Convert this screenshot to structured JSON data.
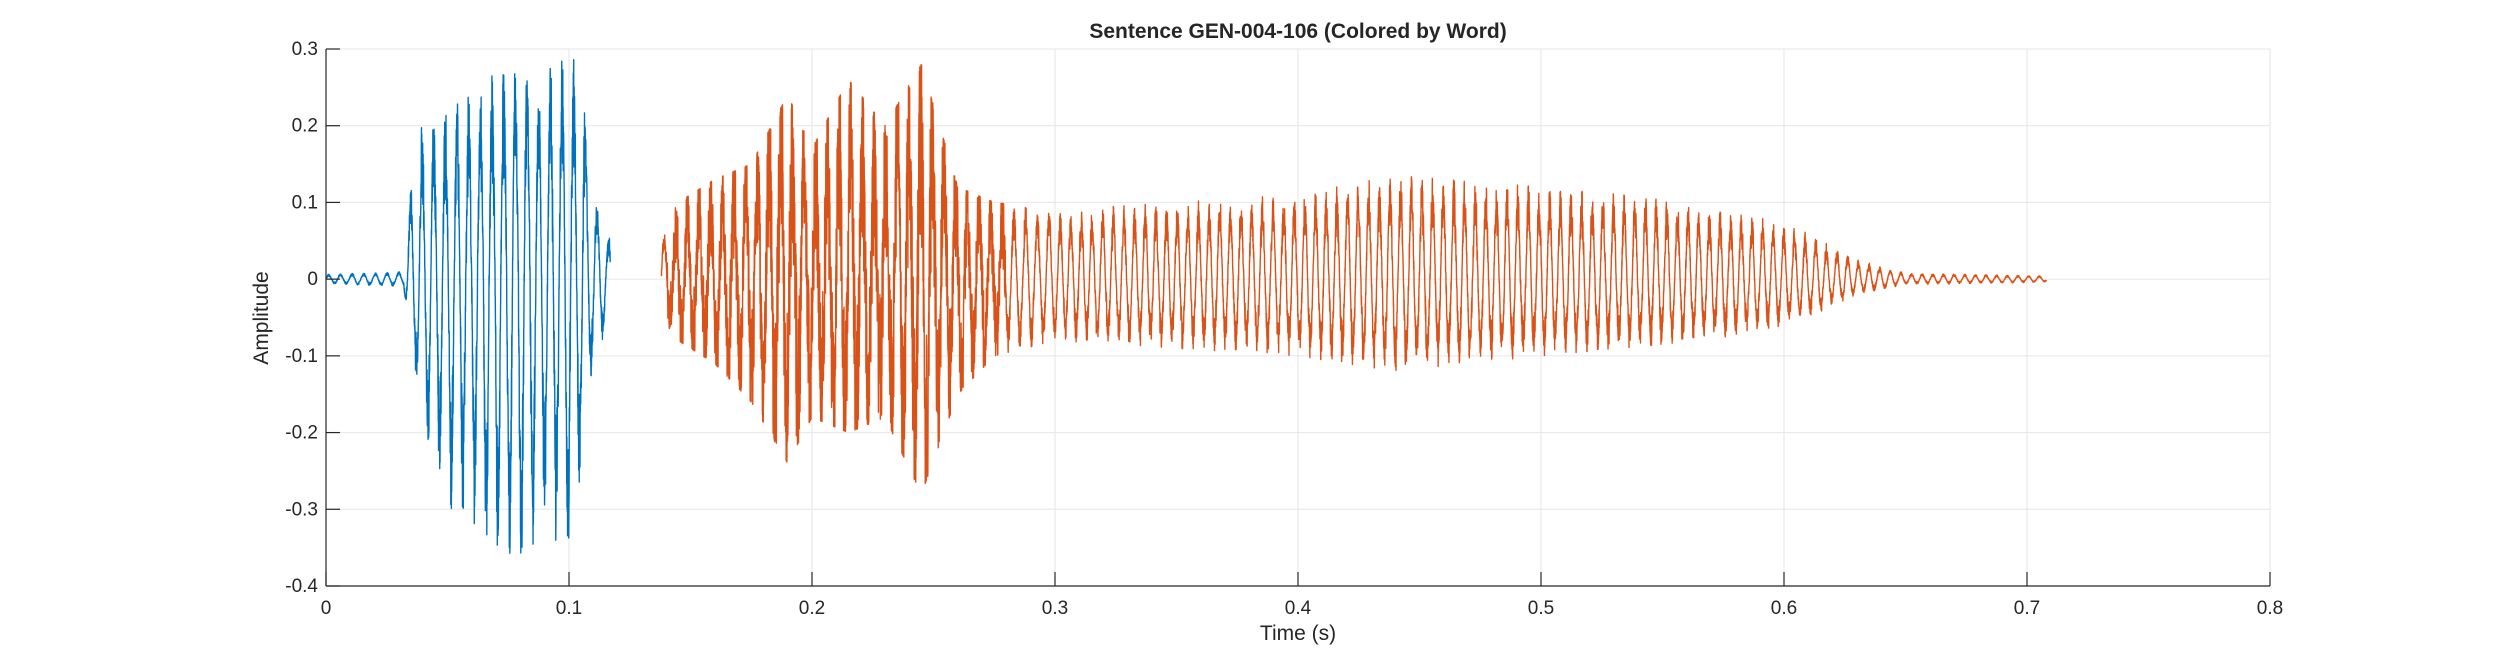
{
  "chart_data": {
    "type": "line",
    "title": "Sentence GEN-004-106 (Colored by Word)",
    "xlabel": "Time (s)",
    "ylabel": "Amplitude",
    "xlim": [
      0,
      0.8
    ],
    "ylim": [
      -0.4,
      0.3
    ],
    "xticks": [
      0,
      0.1,
      0.2,
      0.3,
      0.4,
      0.5,
      0.6,
      0.7,
      0.8
    ],
    "xtick_labels": [
      "0",
      "0.1",
      "0.2",
      "0.3",
      "0.4",
      "0.5",
      "0.6",
      "0.7",
      "0.8"
    ],
    "yticks": [
      -0.4,
      -0.3,
      -0.2,
      -0.1,
      0,
      0.1,
      0.2,
      0.3
    ],
    "ytick_labels": [
      "-0.4",
      "-0.3",
      "-0.2",
      "-0.1",
      "0",
      "0.1",
      "0.2",
      "0.3"
    ],
    "grid": true,
    "series": [
      {
        "color": "#0072BD",
        "t_start": 0,
        "t_end": 0.117,
        "envelope": [
          [
            0,
            0.006,
            -0.006
          ],
          [
            0.032,
            0.01,
            -0.01
          ],
          [
            0.035,
            0.13,
            -0.1
          ],
          [
            0.04,
            0.21,
            -0.2
          ],
          [
            0.05,
            0.22,
            -0.3
          ],
          [
            0.06,
            0.24,
            -0.32
          ],
          [
            0.07,
            0.27,
            -0.37
          ],
          [
            0.08,
            0.29,
            -0.39
          ],
          [
            0.09,
            0.27,
            -0.33
          ],
          [
            0.1,
            0.29,
            -0.36
          ],
          [
            0.105,
            0.28,
            -0.25
          ],
          [
            0.11,
            0.12,
            -0.1
          ],
          [
            0.117,
            0.05,
            -0.06
          ]
        ]
      },
      {
        "color": "#D95319",
        "t_start": 0.138,
        "t_end": 0.708,
        "envelope": [
          [
            0.138,
            0.06,
            -0.05
          ],
          [
            0.145,
            0.1,
            -0.08
          ],
          [
            0.16,
            0.13,
            -0.11
          ],
          [
            0.175,
            0.15,
            -0.16
          ],
          [
            0.19,
            0.24,
            -0.24
          ],
          [
            0.2,
            0.17,
            -0.18
          ],
          [
            0.215,
            0.26,
            -0.2
          ],
          [
            0.23,
            0.2,
            -0.18
          ],
          [
            0.245,
            0.28,
            -0.28
          ],
          [
            0.26,
            0.12,
            -0.15
          ],
          [
            0.275,
            0.1,
            -0.1
          ],
          [
            0.3,
            0.09,
            -0.08
          ],
          [
            0.35,
            0.1,
            -0.09
          ],
          [
            0.4,
            0.11,
            -0.1
          ],
          [
            0.44,
            0.135,
            -0.12
          ],
          [
            0.5,
            0.12,
            -0.1
          ],
          [
            0.55,
            0.105,
            -0.085
          ],
          [
            0.59,
            0.08,
            -0.07
          ],
          [
            0.61,
            0.06,
            -0.05
          ],
          [
            0.63,
            0.025,
            -0.02
          ],
          [
            0.65,
            0.008,
            -0.007
          ],
          [
            0.708,
            0.004,
            -0.004
          ]
        ]
      }
    ]
  }
}
